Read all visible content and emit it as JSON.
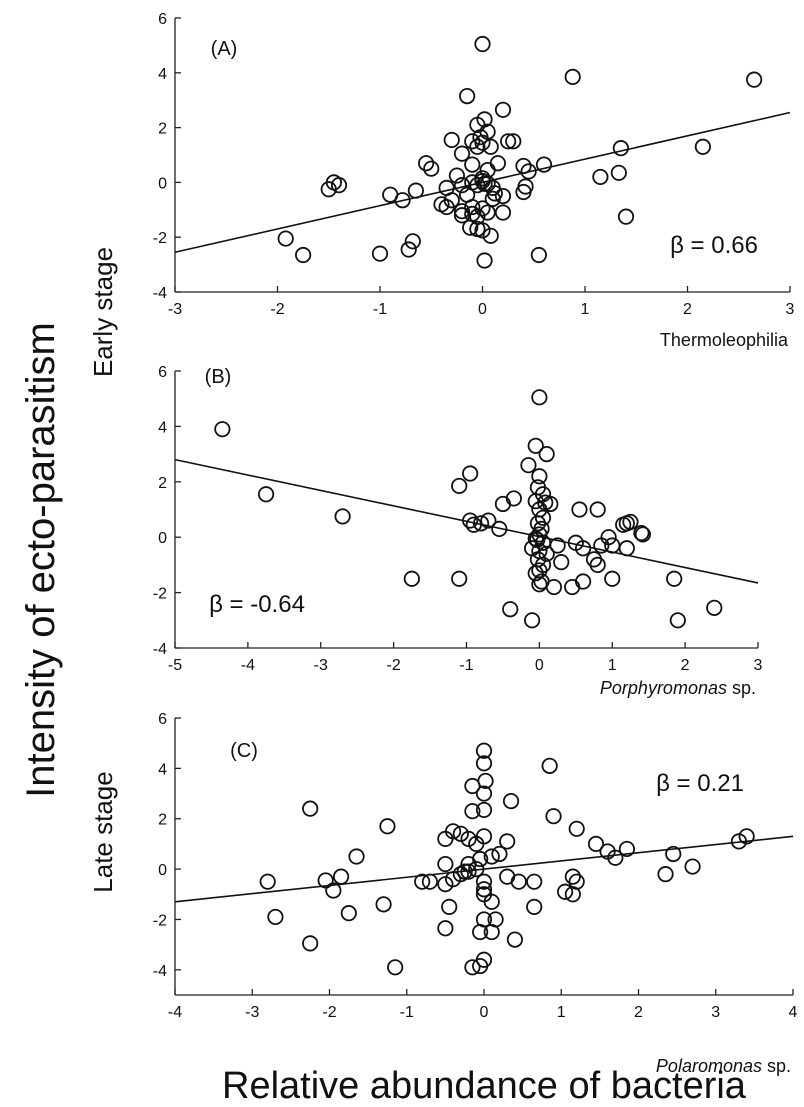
{
  "y_title": "Intensity of ecto-parasitism",
  "x_title": "Relative abundance of bacteria",
  "stage_labels": {
    "early": "Early stage",
    "late": "Late stage"
  },
  "chart_data": [
    {
      "type": "scatter",
      "panel": "(A)",
      "beta": "β = 0.66",
      "xlabel": "Thermoleophilia",
      "xlabel_italic": false,
      "xlabel_suffix": "",
      "xlim": [
        -3,
        3
      ],
      "ylim": [
        -4,
        6
      ],
      "xticks": [
        -3,
        -2,
        -1,
        0,
        1,
        2,
        3
      ],
      "yticks": [
        -4,
        -2,
        0,
        2,
        4,
        6
      ],
      "fit_line": {
        "x": [
          -3,
          3
        ],
        "y": [
          -2.55,
          2.55
        ]
      },
      "points": [
        [
          0.0,
          5.05
        ],
        [
          0.88,
          3.85
        ],
        [
          2.65,
          3.75
        ],
        [
          -0.15,
          3.15
        ],
        [
          0.2,
          2.65
        ],
        [
          0.02,
          2.3
        ],
        [
          -0.05,
          2.1
        ],
        [
          0.05,
          1.85
        ],
        [
          -0.02,
          1.65
        ],
        [
          -0.3,
          1.55
        ],
        [
          -0.1,
          1.5
        ],
        [
          0.25,
          1.5
        ],
        [
          0.3,
          1.5
        ],
        [
          0.08,
          1.3
        ],
        [
          0.0,
          1.45
        ],
        [
          -0.05,
          1.3
        ],
        [
          1.35,
          1.25
        ],
        [
          2.15,
          1.3
        ],
        [
          -0.2,
          1.05
        ],
        [
          0.15,
          0.7
        ],
        [
          0.6,
          0.65
        ],
        [
          -0.55,
          0.7
        ],
        [
          -0.5,
          0.5
        ],
        [
          -0.1,
          0.65
        ],
        [
          0.05,
          0.45
        ],
        [
          -0.25,
          0.25
        ],
        [
          0.4,
          0.6
        ],
        [
          0.45,
          0.4
        ],
        [
          1.33,
          0.35
        ],
        [
          1.15,
          0.2
        ],
        [
          -1.45,
          0.0
        ],
        [
          -1.4,
          -0.1
        ],
        [
          -1.5,
          -0.25
        ],
        [
          -0.35,
          -0.2
        ],
        [
          -0.2,
          -0.1
        ],
        [
          -0.1,
          0.0
        ],
        [
          0.0,
          0.05
        ],
        [
          0.05,
          -0.05
        ],
        [
          -0.05,
          -0.1
        ],
        [
          0.1,
          -0.2
        ],
        [
          0.0,
          0.15
        ],
        [
          0.02,
          -0.05
        ],
        [
          -0.65,
          -0.3
        ],
        [
          -0.9,
          -0.45
        ],
        [
          -0.78,
          -0.65
        ],
        [
          -0.3,
          -0.65
        ],
        [
          -0.4,
          -0.8
        ],
        [
          -0.35,
          -0.9
        ],
        [
          -0.1,
          -0.9
        ],
        [
          0.0,
          -0.95
        ],
        [
          0.2,
          -0.5
        ],
        [
          0.42,
          -0.15
        ],
        [
          0.4,
          -0.35
        ],
        [
          0.12,
          -0.4
        ],
        [
          -0.2,
          -1.05
        ],
        [
          -0.1,
          -1.15
        ],
        [
          -0.2,
          -1.2
        ],
        [
          -0.05,
          -1.25
        ],
        [
          0.05,
          -1.1
        ],
        [
          0.2,
          -1.1
        ],
        [
          -0.12,
          -1.65
        ],
        [
          -0.05,
          -1.7
        ],
        [
          0.0,
          -1.75
        ],
        [
          0.08,
          -1.95
        ],
        [
          1.4,
          -1.25
        ],
        [
          -0.68,
          -2.15
        ],
        [
          -0.72,
          -2.45
        ],
        [
          -1.92,
          -2.05
        ],
        [
          -1.75,
          -2.65
        ],
        [
          -1.0,
          -2.6
        ],
        [
          0.55,
          -2.65
        ],
        [
          0.02,
          -2.85
        ],
        [
          -0.15,
          -0.45
        ],
        [
          0.1,
          -0.6
        ]
      ]
    },
    {
      "type": "scatter",
      "panel": "(B)",
      "beta": "β = -0.64",
      "xlabel": "Porphyromonas",
      "xlabel_italic": true,
      "xlabel_suffix": " sp.",
      "xlim": [
        -5,
        3
      ],
      "ylim": [
        -4,
        6
      ],
      "xticks": [
        -5,
        -4,
        -3,
        -2,
        -1,
        0,
        1,
        2,
        3
      ],
      "yticks": [
        -4,
        -2,
        0,
        2,
        4,
        6
      ],
      "fit_line": {
        "x": [
          -5,
          3
        ],
        "y": [
          2.8,
          -1.65
        ]
      },
      "points": [
        [
          -4.35,
          3.9
        ],
        [
          -3.75,
          1.55
        ],
        [
          -2.7,
          0.75
        ],
        [
          -1.75,
          -1.5
        ],
        [
          -1.1,
          -1.5
        ],
        [
          -1.1,
          1.85
        ],
        [
          -0.95,
          2.3
        ],
        [
          -0.95,
          0.6
        ],
        [
          -0.9,
          0.45
        ],
        [
          -0.8,
          0.5
        ],
        [
          -0.7,
          0.6
        ],
        [
          -0.55,
          0.3
        ],
        [
          -0.5,
          1.2
        ],
        [
          -0.35,
          1.4
        ],
        [
          -0.4,
          -2.6
        ],
        [
          -0.1,
          -3.0
        ],
        [
          -0.15,
          2.6
        ],
        [
          -0.05,
          3.3
        ],
        [
          0.0,
          5.05
        ],
        [
          0.1,
          3.0
        ],
        [
          0.0,
          2.2
        ],
        [
          -0.02,
          1.8
        ],
        [
          0.05,
          1.55
        ],
        [
          -0.05,
          1.3
        ],
        [
          0.08,
          1.25
        ],
        [
          0.15,
          1.2
        ],
        [
          0.0,
          1.0
        ],
        [
          0.05,
          0.7
        ],
        [
          -0.02,
          0.5
        ],
        [
          0.03,
          0.3
        ],
        [
          0.0,
          0.1
        ],
        [
          -0.03,
          -0.1
        ],
        [
          0.05,
          -0.2
        ],
        [
          -0.1,
          -0.4
        ],
        [
          0.0,
          -0.5
        ],
        [
          0.1,
          -0.6
        ],
        [
          -0.02,
          -0.8
        ],
        [
          0.05,
          -1.0
        ],
        [
          0.0,
          -1.2
        ],
        [
          -0.05,
          -1.3
        ],
        [
          0.03,
          -1.6
        ],
        [
          0.0,
          -1.7
        ],
        [
          0.2,
          -1.8
        ],
        [
          0.25,
          -0.3
        ],
        [
          0.3,
          -0.9
        ],
        [
          0.5,
          -0.2
        ],
        [
          0.6,
          -0.4
        ],
        [
          0.55,
          1.0
        ],
        [
          0.75,
          -0.8
        ],
        [
          0.8,
          -1.0
        ],
        [
          0.85,
          -0.3
        ],
        [
          0.6,
          -1.6
        ],
        [
          0.45,
          -1.8
        ],
        [
          0.95,
          0.0
        ],
        [
          1.0,
          -0.3
        ],
        [
          1.15,
          0.45
        ],
        [
          1.2,
          0.5
        ],
        [
          1.25,
          0.55
        ],
        [
          1.4,
          0.15
        ],
        [
          1.42,
          0.1
        ],
        [
          1.2,
          -0.4
        ],
        [
          1.0,
          -1.5
        ],
        [
          0.8,
          1.0
        ],
        [
          1.85,
          -1.5
        ],
        [
          1.9,
          -3.0
        ],
        [
          2.4,
          -2.55
        ],
        [
          -0.05,
          -0.05
        ]
      ]
    },
    {
      "type": "scatter",
      "panel": "(C)",
      "beta": "β = 0.21",
      "xlabel": "Polaromonas",
      "xlabel_italic": true,
      "xlabel_suffix": " sp.",
      "xlim": [
        -4,
        4
      ],
      "ylim": [
        -5,
        6
      ],
      "xticks": [
        -4,
        -3,
        -2,
        -1,
        0,
        1,
        2,
        3,
        4
      ],
      "yticks": [
        -4,
        -2,
        0,
        2,
        4,
        6
      ],
      "fit_line": {
        "x": [
          -4,
          4
        ],
        "y": [
          -1.3,
          1.3
        ]
      },
      "points": [
        [
          0.0,
          4.7
        ],
        [
          0.0,
          4.2
        ],
        [
          0.02,
          3.5
        ],
        [
          -0.15,
          3.3
        ],
        [
          0.85,
          4.1
        ],
        [
          0.0,
          3.0
        ],
        [
          -0.15,
          2.3
        ],
        [
          0.0,
          2.35
        ],
        [
          0.35,
          2.7
        ],
        [
          0.9,
          2.1
        ],
        [
          1.2,
          1.6
        ],
        [
          -2.25,
          2.4
        ],
        [
          -1.25,
          1.7
        ],
        [
          -0.4,
          1.5
        ],
        [
          -0.3,
          1.4
        ],
        [
          -0.5,
          1.2
        ],
        [
          -0.2,
          1.2
        ],
        [
          -0.1,
          1.0
        ],
        [
          0.0,
          1.3
        ],
        [
          0.3,
          1.1
        ],
        [
          1.45,
          1.0
        ],
        [
          1.6,
          0.7
        ],
        [
          1.85,
          0.8
        ],
        [
          2.45,
          0.6
        ],
        [
          3.3,
          1.1
        ],
        [
          3.4,
          1.3
        ],
        [
          -1.65,
          0.5
        ],
        [
          -0.05,
          0.4
        ],
        [
          0.1,
          0.5
        ],
        [
          0.2,
          0.6
        ],
        [
          -0.2,
          0.2
        ],
        [
          -0.5,
          0.2
        ],
        [
          -2.8,
          -0.5
        ],
        [
          -2.05,
          -0.45
        ],
        [
          -1.85,
          -0.3
        ],
        [
          -0.8,
          -0.5
        ],
        [
          -0.7,
          -0.5
        ],
        [
          -0.5,
          -0.6
        ],
        [
          -0.4,
          -0.4
        ],
        [
          -0.3,
          -0.2
        ],
        [
          -0.25,
          -0.1
        ],
        [
          -0.2,
          -0.1
        ],
        [
          -0.1,
          0.0
        ],
        [
          0.0,
          -0.5
        ],
        [
          0.3,
          -0.3
        ],
        [
          0.45,
          -0.5
        ],
        [
          0.65,
          -0.5
        ],
        [
          1.15,
          -0.3
        ],
        [
          1.2,
          -0.5
        ],
        [
          1.7,
          0.45
        ],
        [
          2.7,
          0.1
        ],
        [
          2.35,
          -0.2
        ],
        [
          -2.7,
          -1.9
        ],
        [
          -1.95,
          -0.85
        ],
        [
          -1.75,
          -1.75
        ],
        [
          -1.3,
          -1.4
        ],
        [
          -0.45,
          -1.5
        ],
        [
          0.0,
          -1.0
        ],
        [
          0.1,
          -1.3
        ],
        [
          0.15,
          -2.0
        ],
        [
          0.0,
          -2.0
        ],
        [
          -0.05,
          -2.5
        ],
        [
          0.1,
          -2.5
        ],
        [
          0.4,
          -2.8
        ],
        [
          0.65,
          -1.5
        ],
        [
          1.05,
          -0.9
        ],
        [
          1.15,
          -1.0
        ],
        [
          -0.5,
          -2.35
        ],
        [
          -2.25,
          -2.95
        ],
        [
          -1.15,
          -3.9
        ],
        [
          -0.15,
          -3.9
        ],
        [
          -0.05,
          -3.85
        ],
        [
          0.0,
          -3.6
        ],
        [
          0.0,
          -0.8
        ]
      ]
    }
  ]
}
